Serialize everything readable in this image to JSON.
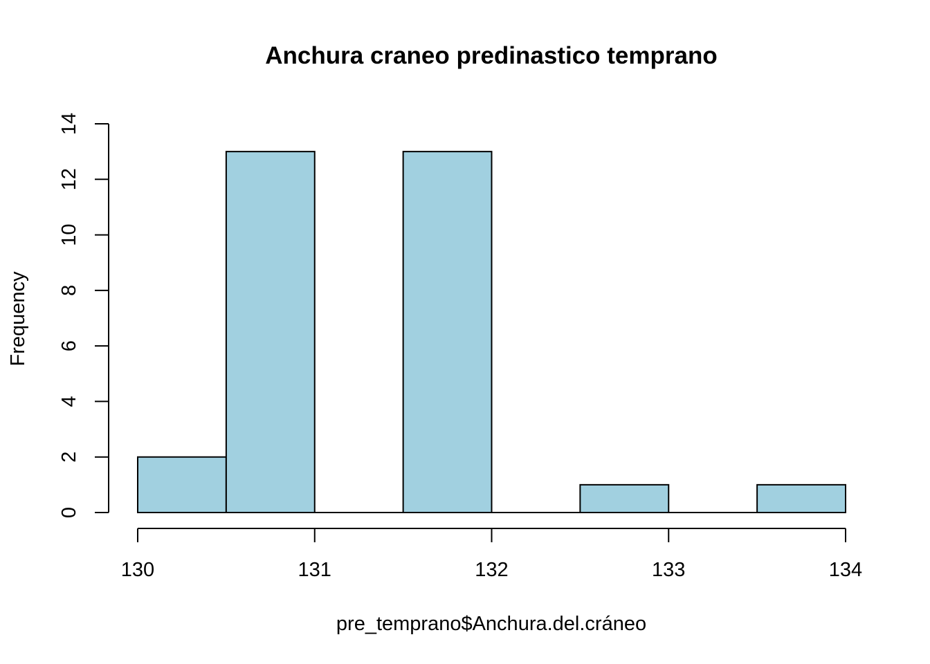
{
  "chart_data": {
    "type": "bar",
    "title": "Anchura craneo predinastico temprano",
    "xlabel": "pre_temprano$Anchura.del.cráneo",
    "ylabel": "Frequency",
    "bins": [
      {
        "from": 130.0,
        "to": 130.5,
        "count": 2
      },
      {
        "from": 130.5,
        "to": 131.0,
        "count": 13
      },
      {
        "from": 131.0,
        "to": 131.5,
        "count": 0
      },
      {
        "from": 131.5,
        "to": 132.0,
        "count": 13
      },
      {
        "from": 132.0,
        "to": 132.5,
        "count": 0
      },
      {
        "from": 132.5,
        "to": 133.0,
        "count": 1
      },
      {
        "from": 133.0,
        "to": 133.5,
        "count": 0
      },
      {
        "from": 133.5,
        "to": 134.0,
        "count": 1
      }
    ],
    "xlim": [
      130,
      134
    ],
    "ylim": [
      0,
      14
    ],
    "x_ticks": [
      "130",
      "131",
      "132",
      "133",
      "134"
    ],
    "y_ticks": [
      "0",
      "2",
      "4",
      "6",
      "8",
      "10",
      "12",
      "14"
    ],
    "bar_color": "#a1d0e0",
    "grid": false,
    "legend": "none"
  }
}
